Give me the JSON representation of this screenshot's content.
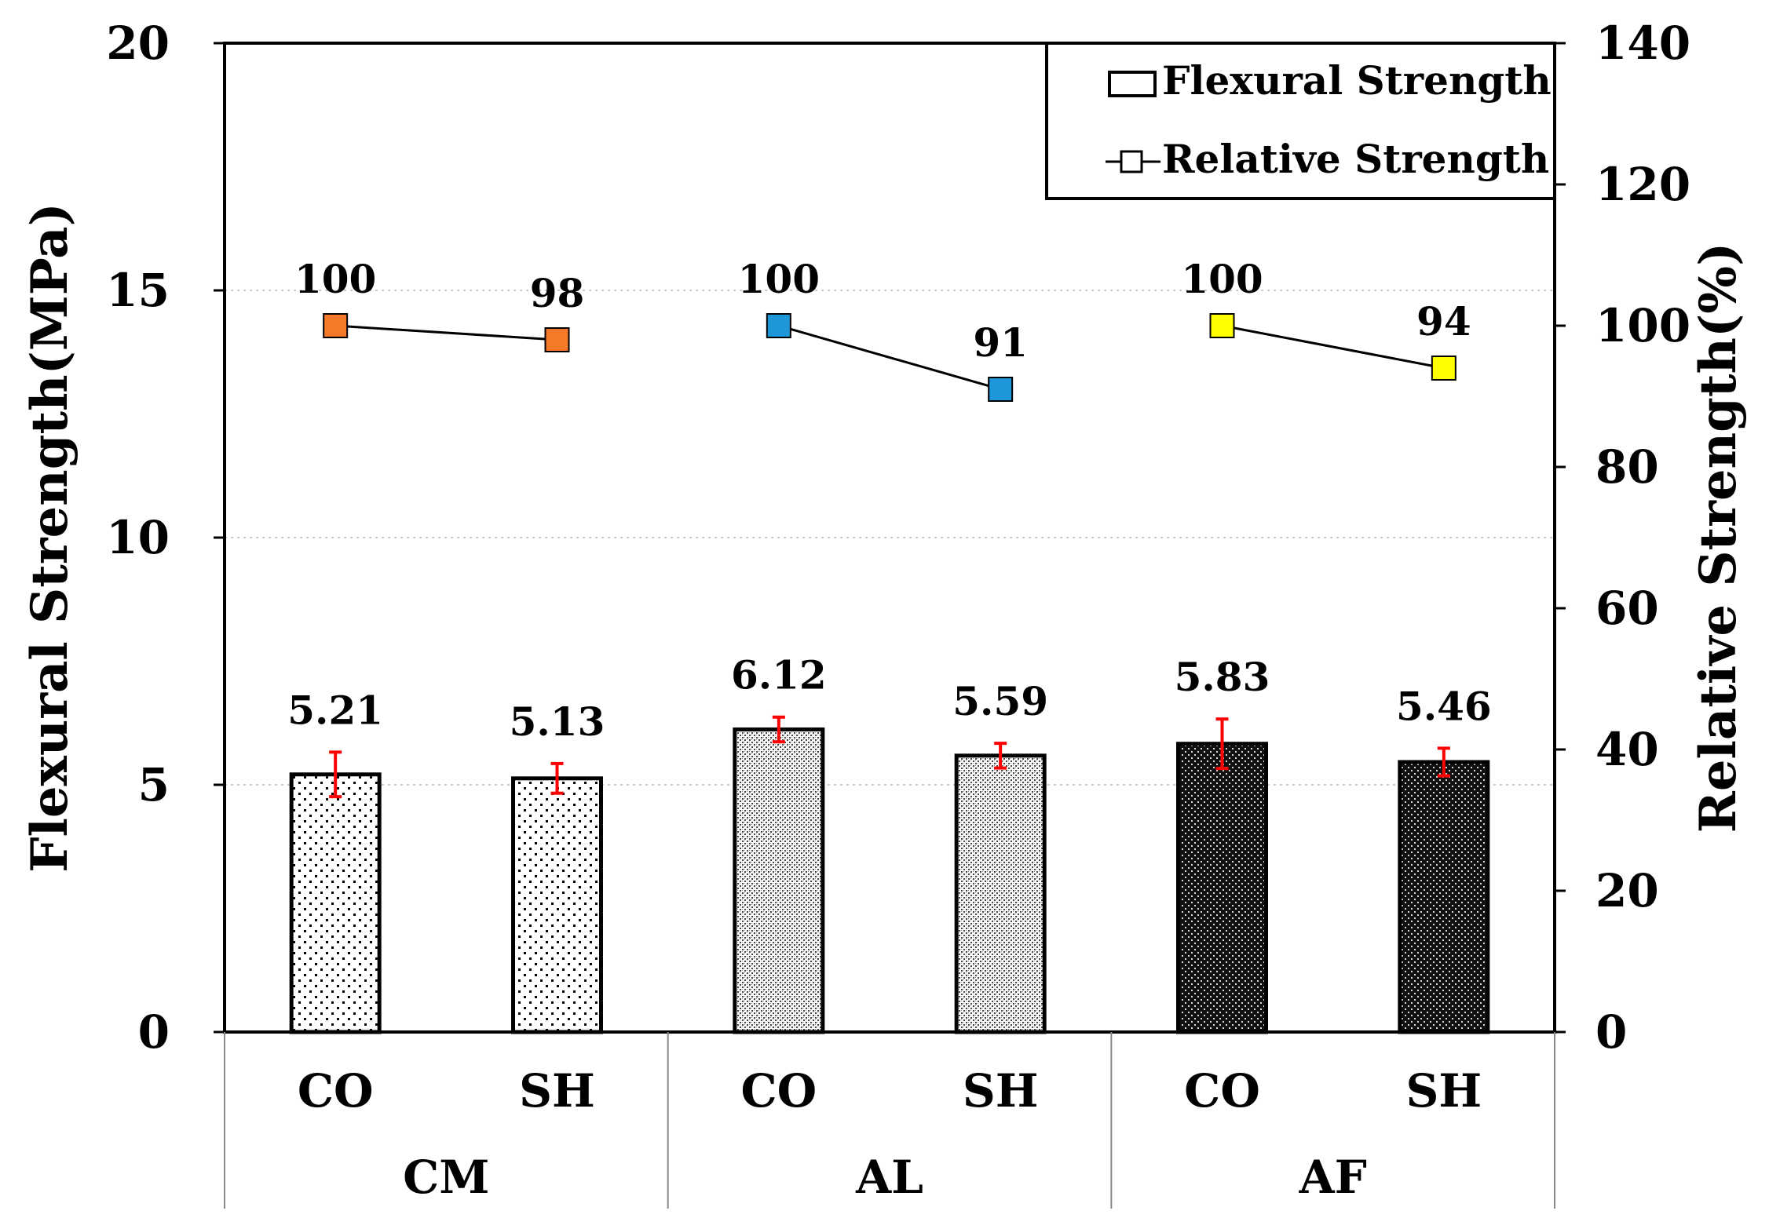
{
  "chart_data": {
    "type": "bar",
    "groups": [
      "CM",
      "AL",
      "AF"
    ],
    "categories": [
      "CO",
      "SH",
      "CO",
      "SH",
      "CO",
      "SH"
    ],
    "series": [
      {
        "name": "Flexural Strength",
        "kind": "bar",
        "axis": "left",
        "values": [
          5.21,
          5.13,
          6.12,
          5.59,
          5.83,
          5.46
        ],
        "labels": [
          "5.21",
          "5.13",
          "6.12",
          "5.59",
          "5.83",
          "5.46"
        ],
        "error": [
          0.45,
          0.3,
          0.25,
          0.25,
          0.5,
          0.28
        ],
        "patterns": [
          "sparse-dots",
          "sparse-dots",
          "dense-dots",
          "dense-dots",
          "dark-checker",
          "dark-checker"
        ]
      },
      {
        "name": "Relative Strength",
        "kind": "line",
        "axis": "right",
        "values": [
          100,
          98,
          100,
          91,
          100,
          94
        ],
        "labels": [
          "100",
          "98",
          "100",
          "91",
          "100",
          "94"
        ],
        "marker_colors": [
          "#f47a2a",
          "#f47a2a",
          "#1e96d8",
          "#1e96d8",
          "#ffff00",
          "#ffff00"
        ]
      }
    ],
    "ylabel": "Flexural Strength(MPa)",
    "y2label": "Relative Strength(%)",
    "ylim": [
      0,
      20
    ],
    "y2lim": [
      0,
      140
    ],
    "yticks": [
      0,
      5,
      10,
      15,
      20
    ],
    "y2ticks": [
      0,
      20,
      40,
      60,
      80,
      100,
      120,
      140
    ],
    "grid": true,
    "legend_position": "top-right",
    "colors": {
      "error_bar": "#ff0000",
      "line": "#000000"
    }
  }
}
